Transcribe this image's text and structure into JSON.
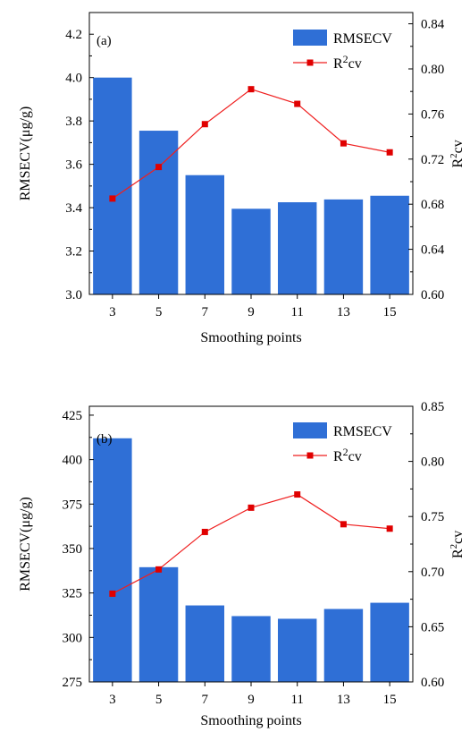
{
  "chart_data": [
    {
      "type": "bar",
      "panel_label": "(a)",
      "categories": [
        "3",
        "5",
        "7",
        "9",
        "11",
        "13",
        "15"
      ],
      "series": [
        {
          "name": "RMSECV",
          "type": "bar",
          "axis": "left",
          "values": [
            4.0,
            3.755,
            3.55,
            3.395,
            3.425,
            3.438,
            3.455
          ]
        },
        {
          "name": "R²cv",
          "name_base": "R",
          "name_sup": "2",
          "name_tail": "cv",
          "type": "line",
          "axis": "right",
          "values": [
            0.685,
            0.713,
            0.751,
            0.782,
            0.769,
            0.734,
            0.726
          ]
        }
      ],
      "xlabel": "Smoothing points",
      "ylabel": "RMSECV(μg/g)",
      "y2label": {
        "base": "R",
        "sup": "2",
        "tail": "cv"
      },
      "ylim": [
        3.0,
        4.3
      ],
      "y2lim": [
        0.6,
        0.85
      ],
      "yticks": [
        "3.0",
        "3.2",
        "3.4",
        "3.6",
        "3.8",
        "4.0",
        "4.2"
      ],
      "y2ticks": [
        "0.60",
        "0.64",
        "0.68",
        "0.72",
        "0.76",
        "0.80",
        "0.84"
      ],
      "legend_position": "top-right",
      "grid": false,
      "colors": {
        "bar": "#2f6fd6",
        "line": "#ef1f1f",
        "marker": "#e00000"
      }
    },
    {
      "type": "bar",
      "panel_label": "(b)",
      "categories": [
        "3",
        "5",
        "7",
        "9",
        "11",
        "13",
        "15"
      ],
      "series": [
        {
          "name": "RMSECV",
          "type": "bar",
          "axis": "left",
          "values": [
            412,
            339.5,
            318,
            312,
            310.5,
            316,
            319.5
          ]
        },
        {
          "name": "R²cv",
          "name_base": "R",
          "name_sup": "2",
          "name_tail": "cv",
          "type": "line",
          "axis": "right",
          "values": [
            0.68,
            0.702,
            0.736,
            0.758,
            0.77,
            0.743,
            0.739
          ]
        }
      ],
      "xlabel": "Smoothing points",
      "ylabel": "RMSECV(μg/g)",
      "y2label": {
        "base": "R",
        "sup": "2",
        "tail": "cv"
      },
      "ylim": [
        275,
        430
      ],
      "y2lim": [
        0.6,
        0.85
      ],
      "yticks": [
        "275",
        "300",
        "325",
        "350",
        "375",
        "400",
        "425"
      ],
      "y2ticks": [
        "0.60",
        "0.65",
        "0.70",
        "0.75",
        "0.80",
        "0.85"
      ],
      "legend_position": "top-right",
      "grid": false,
      "colors": {
        "bar": "#2f6fd6",
        "line": "#ef1f1f",
        "marker": "#e00000"
      }
    }
  ]
}
